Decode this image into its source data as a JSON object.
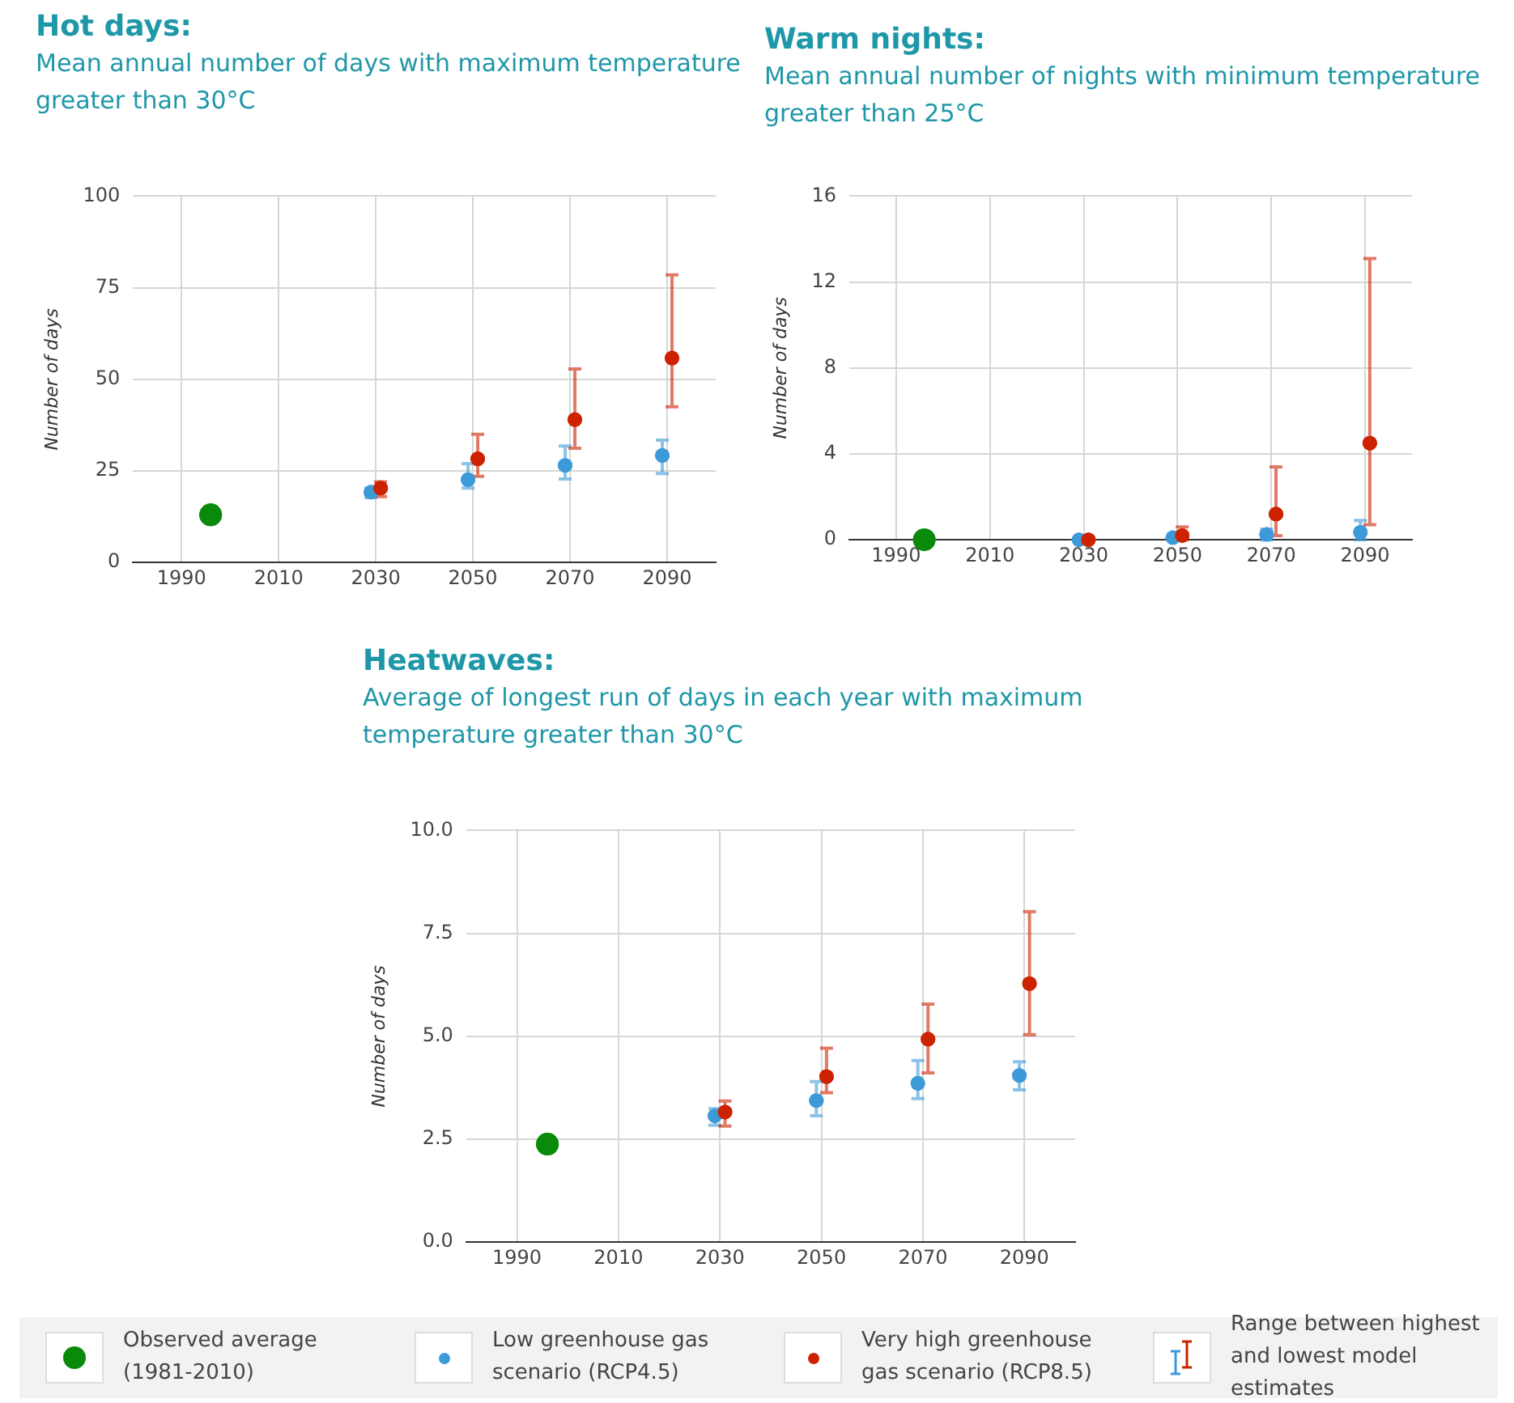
{
  "chart_data": [
    {
      "type": "scatter",
      "title": "Hot days:",
      "subtitle": "Mean annual number of days with maximum temperature greater than 30°C",
      "ylabel": "Number of days",
      "xlim": [
        1980,
        2100
      ],
      "xticks": [
        1990,
        2010,
        2030,
        2050,
        2070,
        2090
      ],
      "ylim": [
        0,
        100
      ],
      "yticks": [
        0,
        25,
        50,
        75,
        100
      ],
      "grid": true,
      "marker": "circle",
      "series": [
        {
          "color": "#0a8a0a",
          "x": [
            1996
          ],
          "values": [
            13
          ]
        },
        {
          "color": "#3d9ad9",
          "x": [
            2029,
            2049,
            2069,
            2089
          ],
          "values": [
            19.2,
            22.6,
            26.5,
            29.2
          ],
          "errors": [
            [
              17.7,
              20.3
            ],
            [
              20.3,
              27
            ],
            [
              22.8,
              31.8
            ],
            [
              24.3,
              33.4
            ]
          ]
        },
        {
          "color": "#cc2200",
          "x": [
            2031,
            2051,
            2071,
            2091
          ],
          "values": [
            20.3,
            28.3,
            39,
            55.8
          ],
          "errors": [
            [
              18,
              22
            ],
            [
              23.5,
              35
            ],
            [
              31.2,
              52.8
            ],
            [
              42.5,
              78.5
            ]
          ]
        }
      ]
    },
    {
      "type": "scatter",
      "title": "Warm nights:",
      "subtitle": "Mean annual number of nights with minimum temperature greater than 25°C",
      "ylabel": "Number of days",
      "xlim": [
        1980,
        2100
      ],
      "xticks": [
        1990,
        2010,
        2030,
        2050,
        2070,
        2090
      ],
      "ylim": [
        0,
        16
      ],
      "yticks": [
        0,
        4,
        8,
        12,
        16
      ],
      "grid": true,
      "marker": "circle",
      "series": [
        {
          "color": "#0a8a0a",
          "x": [
            1996
          ],
          "values": [
            0
          ]
        },
        {
          "color": "#3d9ad9",
          "x": [
            2029,
            2049,
            2069,
            2089
          ],
          "values": [
            0,
            0.1,
            0.25,
            0.35
          ],
          "errors": [
            null,
            null,
            [
              0,
              0.5
            ],
            [
              0,
              0.9
            ]
          ]
        },
        {
          "color": "#cc2200",
          "x": [
            2031,
            2051,
            2071,
            2091
          ],
          "values": [
            0,
            0.2,
            1.2,
            4.5
          ],
          "errors": [
            null,
            [
              0,
              0.6
            ],
            [
              0.2,
              3.4
            ],
            [
              0.7,
              13.1
            ]
          ]
        }
      ]
    },
    {
      "type": "scatter",
      "title": "Heatwaves:",
      "subtitle": "Average of longest run of days in each year with maximum temperature greater than 30°C",
      "ylabel": "Number of days",
      "xlim": [
        1980,
        2100
      ],
      "xticks": [
        1990,
        2010,
        2030,
        2050,
        2070,
        2090
      ],
      "ylim": [
        0,
        10
      ],
      "yticks": [
        {
          "value": 0,
          "label": "0.0"
        },
        {
          "value": 2.5,
          "label": "2.5"
        },
        {
          "value": 5,
          "label": "5.0"
        },
        {
          "value": 7.5,
          "label": "7.5"
        },
        {
          "value": 10,
          "label": "10.0"
        }
      ],
      "grid": true,
      "marker": "circle",
      "legend": "bottom",
      "annotations": [
        "Range between highest and lowest model estimates"
      ],
      "series": [
        {
          "name": "Observed average (1981-2010)",
          "color": "#0a8a0a",
          "x": [
            1996
          ],
          "values": [
            2.38
          ]
        },
        {
          "name": "Low greenhouse gas scenario (RCP4.5)",
          "color": "#3d9ad9",
          "x": [
            2029,
            2049,
            2069,
            2089
          ],
          "values": [
            3.07,
            3.44,
            3.86,
            4.05
          ],
          "errors": [
            [
              2.84,
              3.24
            ],
            [
              3.07,
              3.9
            ],
            [
              3.49,
              4.41
            ],
            [
              3.7,
              4.38
            ]
          ]
        },
        {
          "name": "Very high greenhouse gas scenario (RCP8.5)",
          "color": "#cc2200",
          "x": [
            2031,
            2051,
            2071,
            2091
          ],
          "values": [
            3.16,
            4.02,
            4.93,
            6.28
          ],
          "errors": [
            [
              2.82,
              3.43
            ],
            [
              3.63,
              4.71
            ],
            [
              4.11,
              5.78
            ],
            [
              5.04,
              8.03
            ]
          ]
        }
      ]
    }
  ]
}
